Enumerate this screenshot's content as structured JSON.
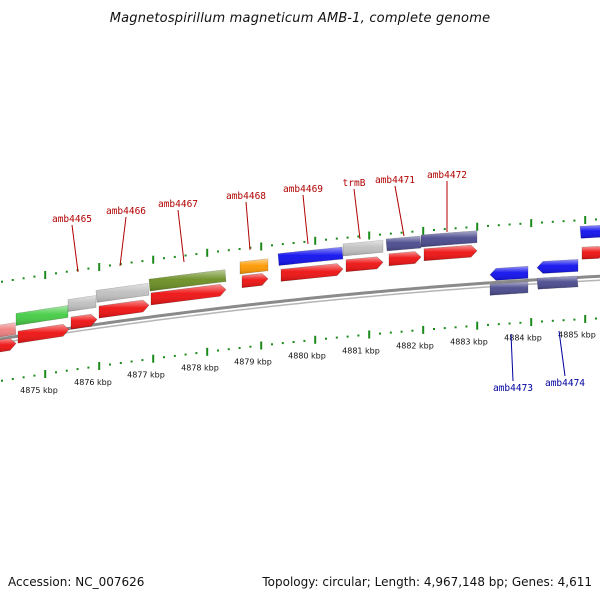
{
  "title": "Magnetospirillum magneticum AMB-1, complete genome",
  "footer": {
    "accession": "Accession: NC_007626",
    "summary": "Topology: circular; Length: 4,967,148 bp; Genes: 4,611"
  },
  "colors": {
    "backbone": "#8a8a8a",
    "tick": "#1a8a1a",
    "cds_red": "#ee1111",
    "top_label": "#b00000",
    "bottom_label": "#0000a0"
  },
  "kbp_labels": [
    "4875 kbp",
    "4876 kbp",
    "4877 kbp",
    "4878 kbp",
    "4879 kbp",
    "4880 kbp",
    "4881 kbp",
    "4882 kbp",
    "4883 kbp",
    "4884 kbp",
    "4885 kbp"
  ],
  "top_genes": [
    {
      "label": "amb4465"
    },
    {
      "label": "amb4466"
    },
    {
      "label": "amb4467"
    },
    {
      "label": "amb4468"
    },
    {
      "label": "amb4469"
    },
    {
      "label": "trmB"
    },
    {
      "label": "amb4471"
    },
    {
      "label": "amb4472"
    }
  ],
  "bottom_genes": [
    {
      "label": "amb4473"
    },
    {
      "label": "amb4474"
    }
  ]
}
